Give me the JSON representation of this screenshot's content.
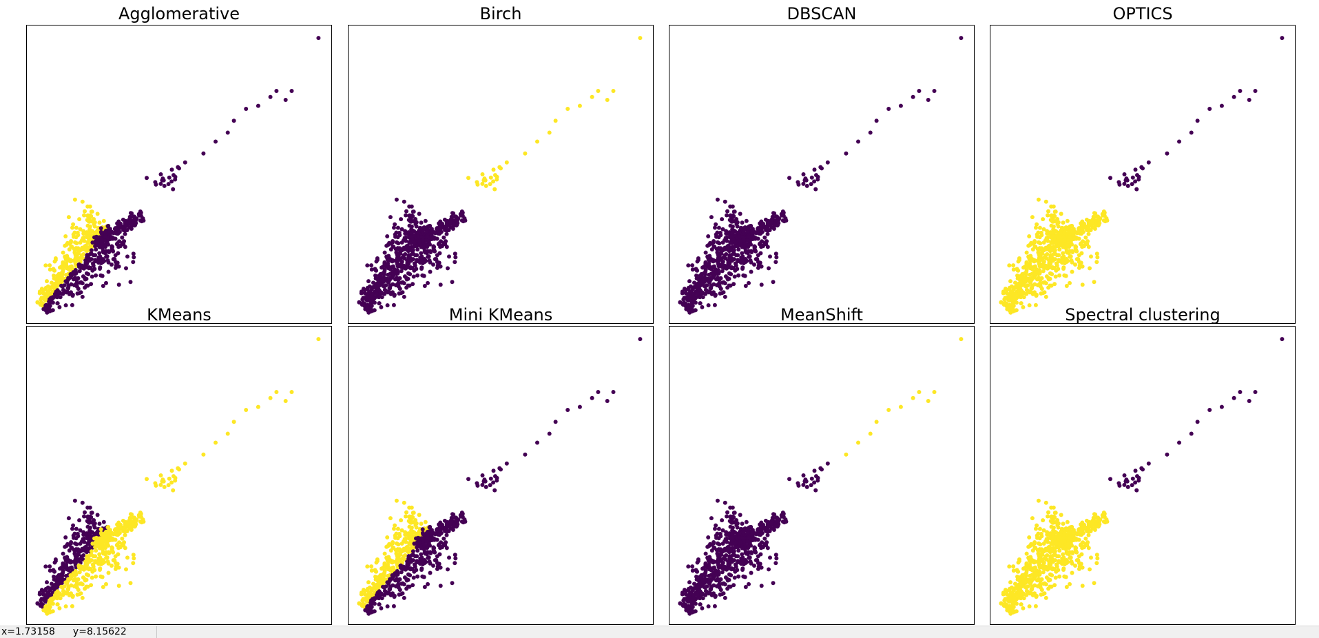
{
  "colors": {
    "cluster0": "#440154",
    "cluster1": "#fde725"
  },
  "status_bar": {
    "x_readout": "x=1.73158",
    "y_readout": "y=8.15622"
  },
  "chart_data": [
    {
      "type": "scatter",
      "title": "Agglomerative",
      "clusters": [
        {
          "label": 0,
          "color": "#440154",
          "groups": [
            "lower_right",
            "upper_mid",
            "outliers",
            "far_outlier"
          ]
        },
        {
          "label": 1,
          "color": "#fde725",
          "groups": [
            "upper_left"
          ]
        }
      ]
    },
    {
      "type": "scatter",
      "title": "Birch",
      "clusters": [
        {
          "label": 0,
          "color": "#440154",
          "groups": [
            "upper_left",
            "lower_right"
          ]
        },
        {
          "label": 1,
          "color": "#fde725",
          "groups": [
            "upper_mid",
            "outliers",
            "far_outlier"
          ]
        }
      ]
    },
    {
      "type": "scatter",
      "title": "DBSCAN",
      "clusters": [
        {
          "label": 0,
          "color": "#440154",
          "groups": [
            "upper_left",
            "lower_right",
            "upper_mid",
            "outliers",
            "far_outlier"
          ]
        }
      ]
    },
    {
      "type": "scatter",
      "title": "OPTICS",
      "clusters": [
        {
          "label": 0,
          "color": "#440154",
          "groups": [
            "upper_mid",
            "outliers",
            "far_outlier"
          ]
        },
        {
          "label": 1,
          "color": "#fde725",
          "groups": [
            "upper_left",
            "lower_right"
          ]
        }
      ]
    },
    {
      "type": "scatter",
      "title": "KMeans",
      "clusters": [
        {
          "label": 0,
          "color": "#440154",
          "groups": [
            "upper_left"
          ]
        },
        {
          "label": 1,
          "color": "#fde725",
          "groups": [
            "lower_right",
            "upper_mid",
            "outliers",
            "far_outlier"
          ]
        }
      ]
    },
    {
      "type": "scatter",
      "title": "Mini KMeans",
      "clusters": [
        {
          "label": 0,
          "color": "#440154",
          "groups": [
            "lower_right",
            "upper_mid",
            "outliers",
            "far_outlier"
          ]
        },
        {
          "label": 1,
          "color": "#fde725",
          "groups": [
            "upper_left"
          ]
        }
      ]
    },
    {
      "type": "scatter",
      "title": "MeanShift",
      "clusters": [
        {
          "label": 0,
          "color": "#440154",
          "groups": [
            "upper_left",
            "lower_right",
            "upper_mid"
          ]
        },
        {
          "label": 1,
          "color": "#fde725",
          "groups": [
            "outliers",
            "far_outlier"
          ]
        }
      ]
    },
    {
      "type": "scatter",
      "title": "Spectral clustering",
      "clusters": [
        {
          "label": 0,
          "color": "#440154",
          "groups": [
            "upper_mid",
            "outliers",
            "far_outlier"
          ]
        },
        {
          "label": 1,
          "color": "#fde725",
          "groups": [
            "upper_left",
            "lower_right"
          ]
        }
      ]
    }
  ]
}
